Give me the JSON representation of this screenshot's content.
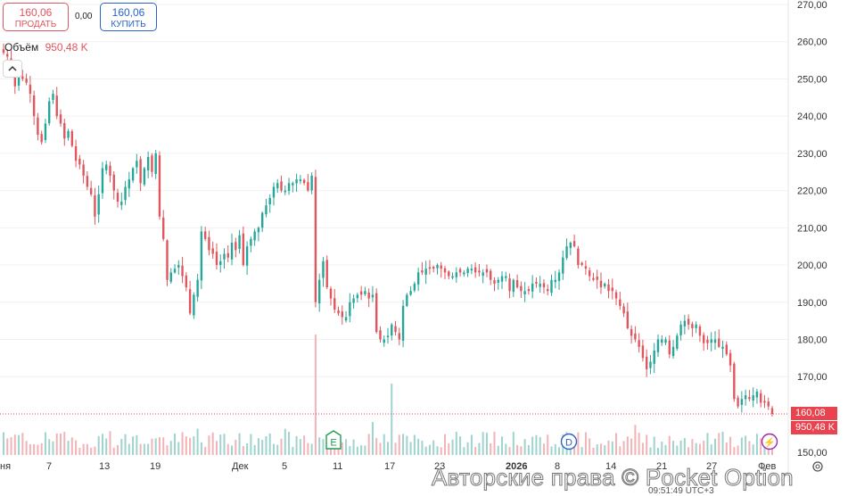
{
  "trade": {
    "sell_price": "160,06",
    "sell_label": "ПРОДАТЬ",
    "spread": "0,00",
    "buy_price": "160,06",
    "buy_label": "КУПИТЬ"
  },
  "volume_legend": {
    "label": "Объём",
    "value": "950,48 K"
  },
  "labels": {
    "current_price": "160,08",
    "current_volume": "950,48 K",
    "copyright": "Авторские права © Pocket Option"
  },
  "event_markers": [
    {
      "letter": "E",
      "name": "earnings",
      "at": "11"
    },
    {
      "letter": "D",
      "name": "dividends",
      "at": "8"
    },
    {
      "letter": "⚡",
      "name": "split",
      "at": "Фев"
    }
  ],
  "bottom_strip": {
    "visible_time": "09:51:49 UTC+3"
  },
  "colors": {
    "up": "#26a69a",
    "down": "#e0565d",
    "accent": "#2962c8",
    "price_line": "#e8434f"
  },
  "chart_data": {
    "type": "candlestick",
    "price_axis": {
      "ticks": [
        270,
        260,
        250,
        240,
        230,
        220,
        210,
        200,
        190,
        180,
        170,
        150
      ],
      "tick_labels": [
        "270,00",
        "260,00",
        "250,00",
        "240,00",
        "230,00",
        "220,00",
        "210,00",
        "200,00",
        "190,00",
        "180,00",
        "170,00",
        "150,00"
      ],
      "range": [
        148,
        273
      ]
    },
    "time_axis": {
      "labels": [
        "ня",
        "7",
        "13",
        "19",
        "Дек",
        "5",
        "11",
        "17",
        "23",
        "2026",
        "8",
        "14",
        "21",
        "27",
        "Фев"
      ]
    },
    "last_price": 160.08,
    "last_volume": "950,48 K",
    "close_series": [
      257,
      256,
      252,
      248,
      251,
      250,
      249,
      246,
      240,
      235,
      233,
      238,
      244,
      246,
      240,
      238,
      234,
      236,
      232,
      228,
      227,
      224,
      221,
      219,
      213,
      219,
      226,
      227,
      224,
      220,
      217,
      217,
      221,
      223,
      226,
      228,
      222,
      226,
      229,
      225,
      230,
      213,
      207,
      196,
      198,
      199,
      200,
      197,
      194,
      187,
      192,
      196,
      209,
      207,
      204,
      203,
      200,
      201,
      203,
      202,
      206,
      204,
      208,
      200,
      205,
      207,
      209,
      210,
      214,
      216,
      218,
      221,
      222,
      220,
      220,
      222,
      222,
      223,
      223,
      222,
      220,
      224,
      190,
      196,
      201,
      194,
      191,
      188,
      187,
      186,
      186,
      190,
      191,
      192,
      192,
      193,
      191,
      192,
      182,
      180,
      180,
      181,
      184,
      182,
      180,
      189,
      192,
      193,
      195,
      198,
      198,
      199,
      199,
      199,
      200,
      199,
      198,
      197,
      197,
      198,
      198,
      198,
      199,
      199,
      198,
      198,
      198,
      198,
      196,
      195,
      196,
      197,
      197,
      193,
      196,
      194,
      193,
      193,
      193,
      195,
      195,
      195,
      194,
      193,
      196,
      196,
      198,
      202,
      205,
      206,
      205,
      200,
      200,
      199,
      197,
      196,
      196,
      194,
      195,
      193,
      193,
      191,
      189,
      187,
      183,
      181,
      180,
      178,
      175,
      172,
      174,
      177,
      180,
      180,
      180,
      176,
      178,
      181,
      184,
      185,
      184,
      183,
      184,
      181,
      179,
      179,
      180,
      180,
      178,
      178,
      176,
      173,
      164,
      162,
      164,
      165,
      164,
      165,
      166,
      163,
      163,
      162,
      160
    ]
  }
}
